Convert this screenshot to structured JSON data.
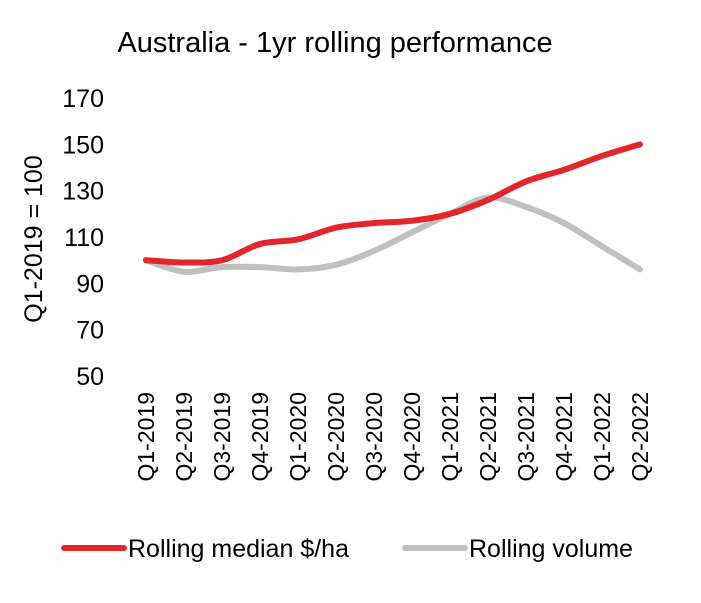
{
  "chart_data": {
    "type": "line",
    "title": "Australia - 1yr rolling performance",
    "ylabel": "Q1-2019 = 100",
    "xlabel": "",
    "categories": [
      "Q1-2019",
      "Q2-2019",
      "Q3-2019",
      "Q4-2019",
      "Q1-2020",
      "Q2-2020",
      "Q3-2020",
      "Q4-2020",
      "Q1-2021",
      "Q2-2021",
      "Q3-2021",
      "Q4-2021",
      "Q1-2022",
      "Q2-2022"
    ],
    "ylim": [
      50,
      170
    ],
    "yticks": [
      50,
      70,
      90,
      110,
      130,
      150,
      170
    ],
    "grid": false,
    "legend_position": "bottom",
    "series": [
      {
        "name": "Rolling median $/ha",
        "color": "#e3262b",
        "values": [
          100,
          99,
          100,
          107,
          109,
          114,
          116,
          117,
          120,
          126,
          134,
          139,
          145,
          150
        ]
      },
      {
        "name": "Rolling volume",
        "color": "#c0c0c0",
        "values": [
          100,
          95,
          97,
          97,
          96,
          98,
          104,
          112,
          120,
          127,
          123,
          116,
          106,
          96
        ]
      }
    ]
  }
}
